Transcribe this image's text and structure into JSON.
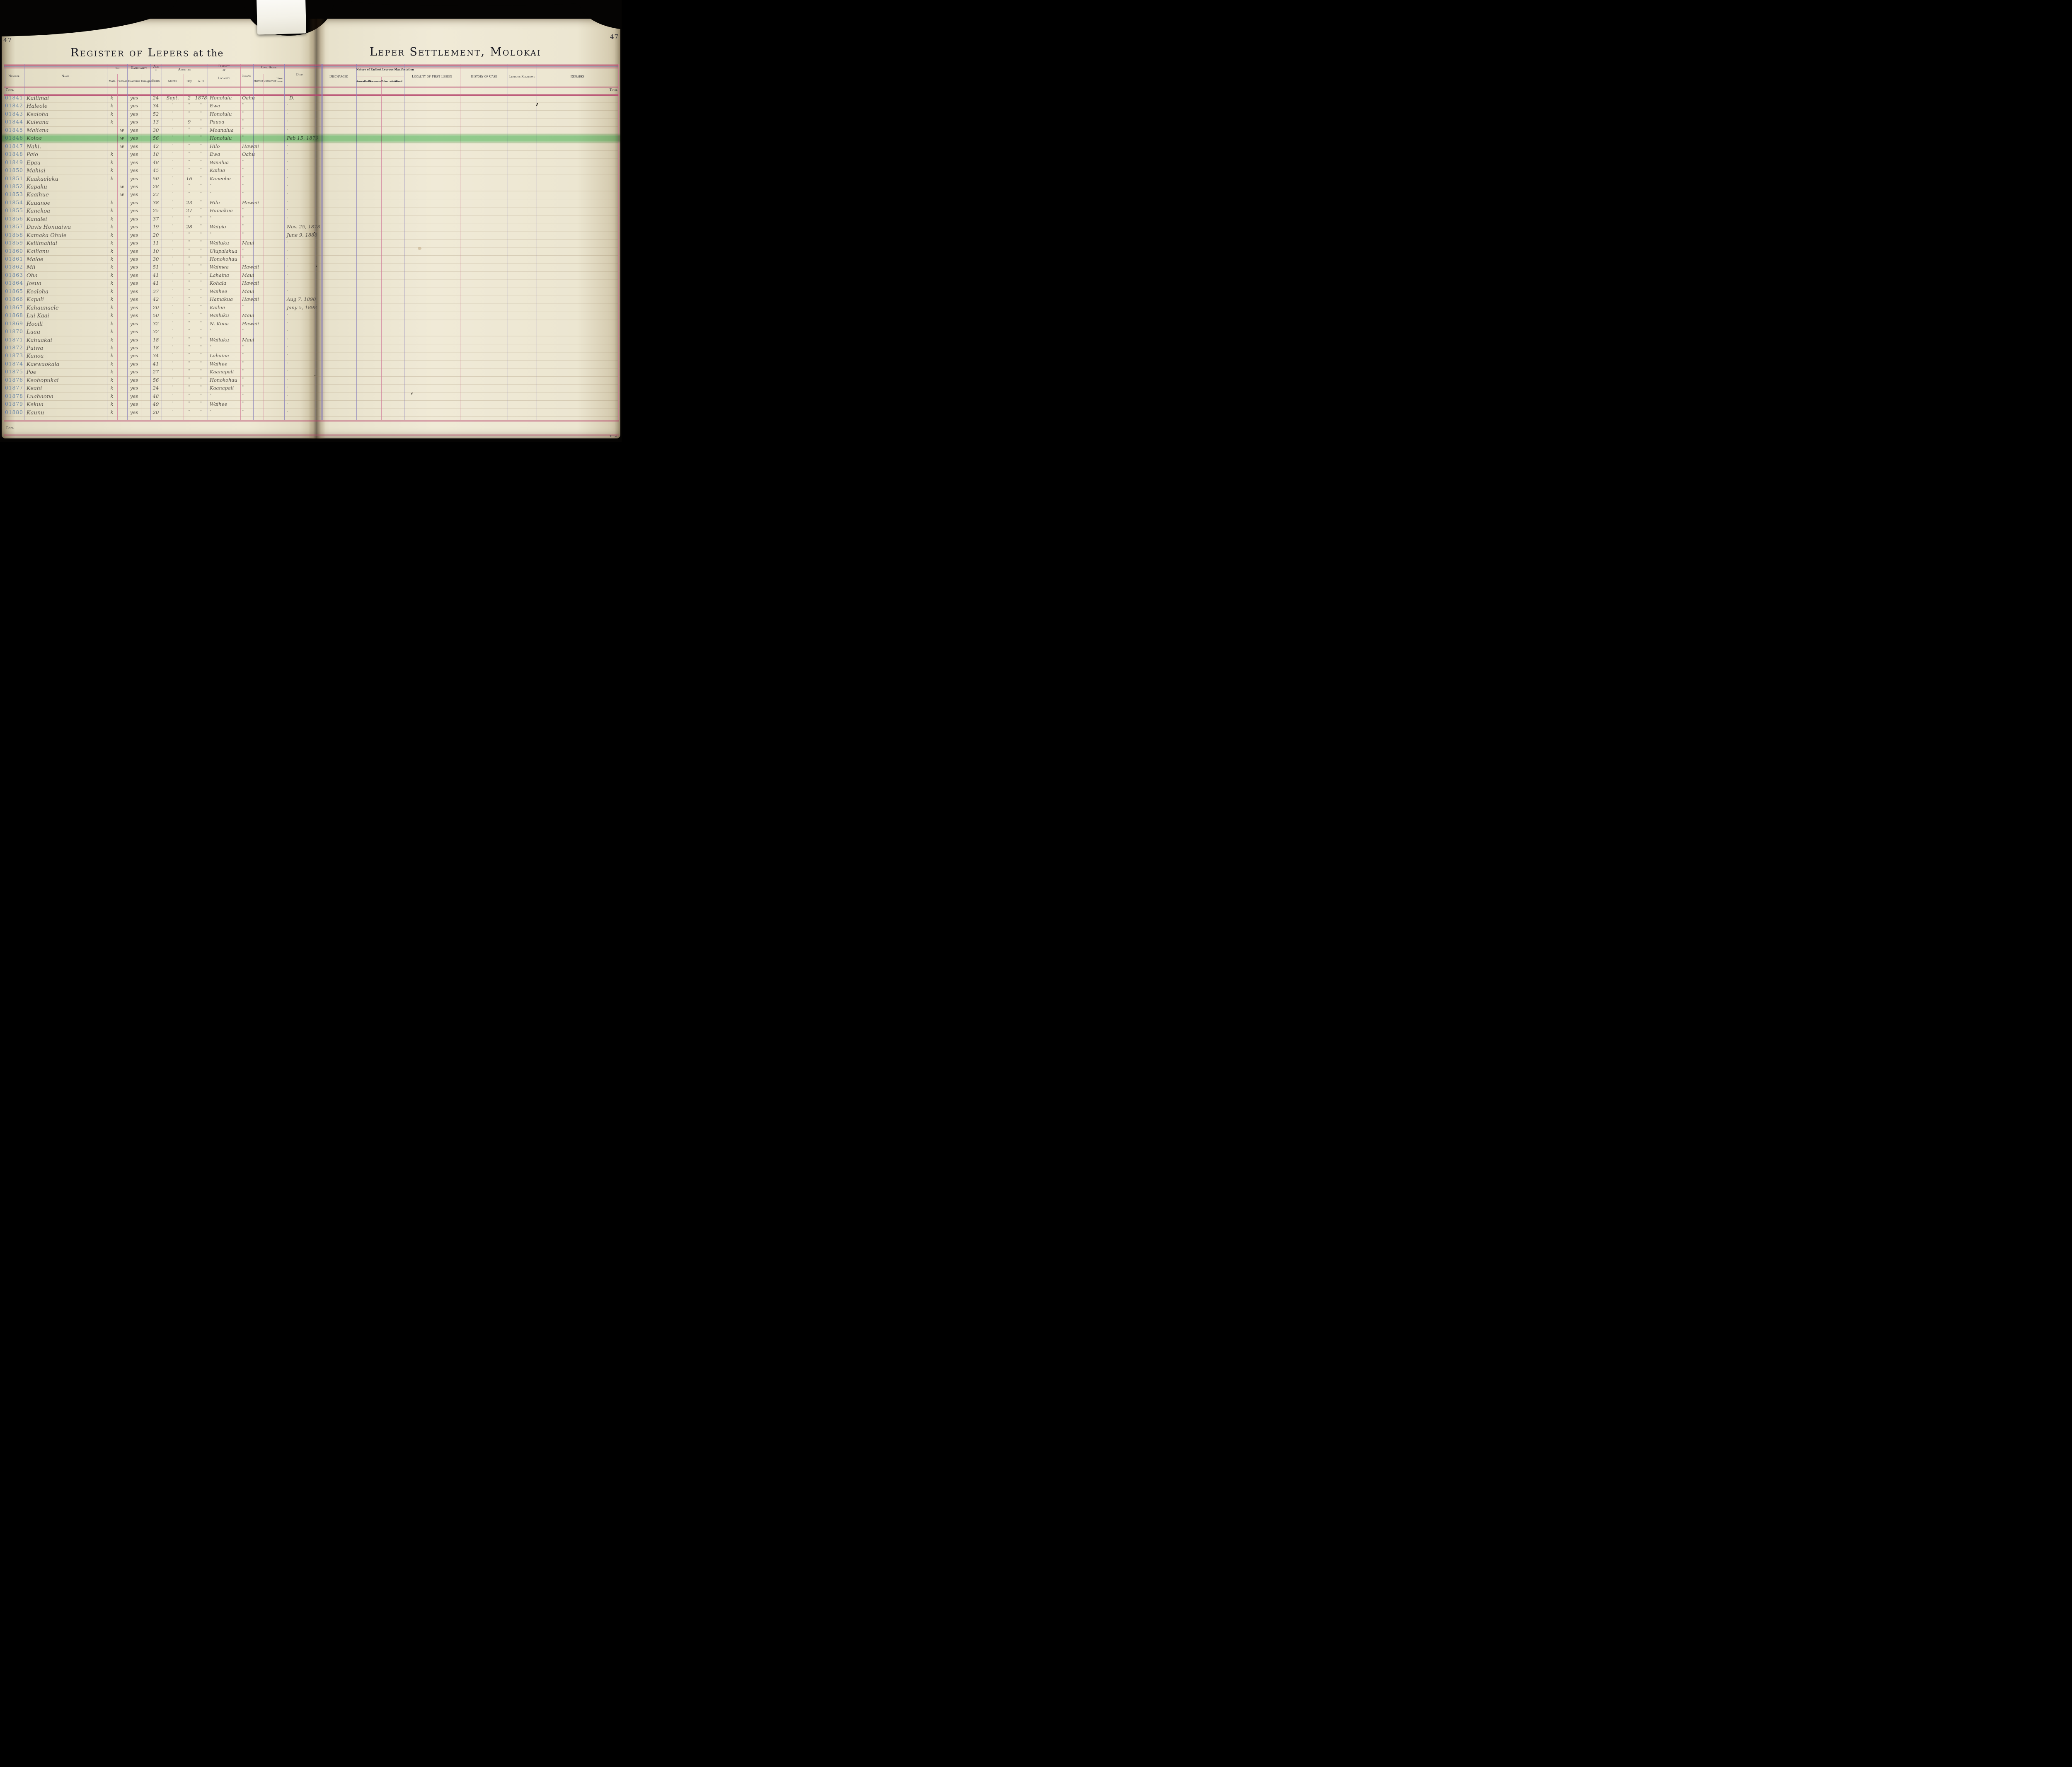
{
  "book": {
    "left_page_number": "47",
    "right_page_number": "47",
    "left_title": "Register of Lepers",
    "left_title_suffix": " at the",
    "right_title": "Leper Settlement, Molokai",
    "total_label": "Total"
  },
  "columns": {
    "number": "Number",
    "name": "Name",
    "sex": "Sex",
    "male": "Male",
    "female": "Female",
    "nationality": "Nationality",
    "hawaiian": "Hawaiian",
    "foreigner": "Foreigner",
    "age1": "Age",
    "age2": "in",
    "age3": "Years",
    "admitted": "Admitted",
    "month": "Month",
    "day": "Day",
    "ad": "A. D.",
    "district1": "District",
    "district2": "or",
    "district3": "Locality",
    "island": "Island",
    "civil": "Civil State",
    "married": "Married",
    "unmarried": "Unmarried",
    "have1": "Have",
    "have2": "Issue",
    "died": "Died",
    "discharged": "Discharged",
    "manifestation": "Nature of Earliest Leprous Manifestation",
    "anaesthetic": "Anaesthetic",
    "macurous": "Macurous",
    "tuberculous": "Tuberculous",
    "mixed": "Mixed",
    "locality_lesion": "Locality of First Lesion",
    "history": "History of Case",
    "relations": "Leprous Relations",
    "remarks": "Remarks"
  },
  "rows": [
    {
      "no": "01841",
      "name": "Kailimai",
      "sex": "k",
      "nat": "yes",
      "age": "24",
      "m": "Sept.",
      "d": "2",
      "y": "1878",
      "dist": "Honolulu",
      "isl": "Oahu",
      "died": "D."
    },
    {
      "no": "01842",
      "name": "Haleole",
      "sex": "k",
      "nat": "yes",
      "age": "34",
      "m": "\"",
      "d": "\"",
      "y": "\"",
      "dist": "Ewa",
      "isl": "\"",
      "died": "·"
    },
    {
      "no": "01843",
      "name": "Kealoha",
      "sex": "k",
      "nat": "yes",
      "age": "52",
      "m": "\"",
      "d": "\"",
      "y": "\"",
      "dist": "Honolulu",
      "isl": "\"",
      "died": "·"
    },
    {
      "no": "01844",
      "name": "Kuleana",
      "sex": "k",
      "nat": "yes",
      "age": "13",
      "m": "\"",
      "d": "9",
      "y": "\"",
      "dist": "Pauoa",
      "isl": "\"",
      "died": "·"
    },
    {
      "no": "01845",
      "name": "Maliana",
      "sex": "w",
      "nat": "yes",
      "age": "30",
      "m": "\"",
      "d": "\"",
      "y": "\"",
      "dist": "Moanalua",
      "isl": "\"",
      "died": "·"
    },
    {
      "no": "01846",
      "name": "Koloa",
      "sex": "w",
      "nat": "yes",
      "age": "56",
      "m": "\"",
      "d": "\"",
      "y": "\"",
      "dist": "Honolulu",
      "isl": "\"",
      "died": "Feb 15, 1879",
      "hl": true
    },
    {
      "no": "01847",
      "name": "Naki.",
      "sex": "w",
      "nat": "yes",
      "age": "42",
      "m": "\"",
      "d": "\"",
      "y": "\"",
      "dist": "Hilo",
      "isl": "Hawaii",
      "died": "·"
    },
    {
      "no": "01848",
      "name": "Paio",
      "sex": "k",
      "nat": "yes",
      "age": "18",
      "m": "\"",
      "d": "\"",
      "y": "\"",
      "dist": "Ewa",
      "isl": "Oahu",
      "died": "·"
    },
    {
      "no": "01849",
      "name": "Epau",
      "sex": "k",
      "nat": "yes",
      "age": "48",
      "m": "\"",
      "d": "\"",
      "y": "\"",
      "dist": "Waialua",
      "isl": "\"",
      "died": "·"
    },
    {
      "no": "01850",
      "name": "Mahiai",
      "sex": "k",
      "nat": "yes",
      "age": "45",
      "m": "\"",
      "d": "\"",
      "y": "\"",
      "dist": "Kailua",
      "isl": "\"",
      "died": "·"
    },
    {
      "no": "01851",
      "name": "Kuakaeleku",
      "sex": "k",
      "nat": "yes",
      "age": "50",
      "m": "\"",
      "d": "16",
      "y": "\"",
      "dist": "Kaneohe",
      "isl": "\"",
      "died": "·"
    },
    {
      "no": "01852",
      "name": "Kapaku",
      "sex": "w",
      "nat": "yes",
      "age": "28",
      "m": "\"",
      "d": "\"",
      "y": "\"",
      "dist": "\"",
      "isl": "\"",
      "died": "·"
    },
    {
      "no": "01853",
      "name": "Kaaihue",
      "sex": "w",
      "nat": "yes",
      "age": "23",
      "m": "\"",
      "d": "\"",
      "y": "\"",
      "dist": "\"",
      "isl": "\"",
      "died": "·"
    },
    {
      "no": "01854",
      "name": "Kauanoe",
      "sex": "k",
      "nat": "yes",
      "age": "38",
      "m": "\"",
      "d": "23",
      "y": "\"",
      "dist": "Hilo",
      "isl": "Hawaii",
      "died": "·"
    },
    {
      "no": "01855",
      "name": "Kanekoa",
      "sex": "k",
      "nat": "yes",
      "age": "25",
      "m": "\"",
      "d": "27",
      "y": "\"",
      "dist": "Hamakua",
      "isl": "\"",
      "died": "·"
    },
    {
      "no": "01856",
      "name": "Kanalei",
      "sex": "k",
      "nat": "yes",
      "age": "37",
      "m": "\"",
      "d": "\"",
      "y": "\"",
      "dist": "\"",
      "isl": "\"",
      "died": "·"
    },
    {
      "no": "01857",
      "name": "Davis Honuaiwa",
      "sex": "k",
      "nat": "yes",
      "age": "19",
      "m": "\"",
      "d": "28",
      "y": "\"",
      "dist": "Waipio",
      "isl": "\"",
      "died": "Nov. 25, 1878"
    },
    {
      "no": "01858",
      "name": "Kamaka Ohule",
      "sex": "k",
      "nat": "yes",
      "age": "20",
      "m": "\"",
      "d": "\"",
      "y": "\"",
      "dist": "\"",
      "isl": "\"",
      "died": "June 9, 1888"
    },
    {
      "no": "01859",
      "name": "Keliimahiai",
      "sex": "k",
      "nat": "yes",
      "age": "11",
      "m": "\"",
      "d": "\"",
      "y": "\"",
      "dist": "Wailuku",
      "isl": "Maui",
      "died": "·"
    },
    {
      "no": "01860",
      "name": "Kailianu",
      "sex": "k",
      "nat": "yes",
      "age": "10",
      "m": "\"",
      "d": "\"",
      "y": "\"",
      "dist": "Ulupalakua",
      "isl": "\"",
      "died": "·"
    },
    {
      "no": "01861",
      "name": "Maloe",
      "sex": "k",
      "nat": "yes",
      "age": "30",
      "m": "\"",
      "d": "\"",
      "y": "\"",
      "dist": "Honokohau",
      "isl": "\"",
      "died": "·"
    },
    {
      "no": "01862",
      "name": "Mii",
      "sex": "k",
      "nat": "yes",
      "age": "51",
      "m": "\"",
      "d": "\"",
      "y": "\"",
      "dist": "Waimea",
      "isl": "Hawaii",
      "died": "·"
    },
    {
      "no": "01863",
      "name": "Oha",
      "sex": "k",
      "nat": "yes",
      "age": "41",
      "m": "\"",
      "d": "\"",
      "y": "\"",
      "dist": "Lahaina",
      "isl": "Maui",
      "died": "·"
    },
    {
      "no": "01864",
      "name": "Josua",
      "sex": "k",
      "nat": "yes",
      "age": "41",
      "m": "\"",
      "d": "\"",
      "y": "\"",
      "dist": "Kohala",
      "isl": "Hawaii",
      "died": "·"
    },
    {
      "no": "01865",
      "name": "Kealoha",
      "sex": "k",
      "nat": "yes",
      "age": "37",
      "m": "\"",
      "d": "\"",
      "y": "\"",
      "dist": "Waihee",
      "isl": "Maui",
      "died": "·"
    },
    {
      "no": "01866",
      "name": "Kapali",
      "sex": "k",
      "nat": "yes",
      "age": "42",
      "m": "\"",
      "d": "\"",
      "y": "\"",
      "dist": "Hamakua",
      "isl": "Hawaii",
      "died": "Aug 7, 1890"
    },
    {
      "no": "01867",
      "name": "Kahaunaele",
      "sex": "k",
      "nat": "yes",
      "age": "20",
      "m": "\"",
      "d": "\"",
      "y": "\"",
      "dist": "Kailua",
      "isl": "\"",
      "died": "Jany 5, 1898"
    },
    {
      "no": "01868",
      "name": "Lui Kaai",
      "sex": "k",
      "nat": "yes",
      "age": "50",
      "m": "\"",
      "d": "\"",
      "y": "\"",
      "dist": "Wailuku",
      "isl": "Maui",
      "died": "·"
    },
    {
      "no": "01869",
      "name": "Hooili",
      "sex": "k",
      "nat": "yes",
      "age": "32",
      "m": "\"",
      "d": "\"",
      "y": "\"",
      "dist": "N. Kona",
      "isl": "Hawaii",
      "died": "·"
    },
    {
      "no": "01870",
      "name": "Luau",
      "sex": "k",
      "nat": "yes",
      "age": "32",
      "m": "\"",
      "d": "\"",
      "y": "\"",
      "dist": "\"",
      "isl": "\"",
      "died": "·"
    },
    {
      "no": "01871",
      "name": "Kahuakai",
      "sex": "k",
      "nat": "yes",
      "age": "18",
      "m": "\"",
      "d": "\"",
      "y": "\"",
      "dist": "Wailuku",
      "isl": "Maui",
      "died": "·"
    },
    {
      "no": "01872",
      "name": "Puiwa",
      "sex": "k",
      "nat": "yes",
      "age": "18",
      "m": "\"",
      "d": "\"",
      "y": "\"",
      "dist": "\"",
      "isl": "\"",
      "died": "·"
    },
    {
      "no": "01873",
      "name": "Kanoa",
      "sex": "k",
      "nat": "yes",
      "age": "34",
      "m": "\"",
      "d": "\"",
      "y": "\"",
      "dist": "Lahaina",
      "isl": "\"",
      "died": "·"
    },
    {
      "no": "01874",
      "name": "Kaewaokala",
      "sex": "k",
      "nat": "yes",
      "age": "41",
      "m": "\"",
      "d": "\"",
      "y": "\"",
      "dist": "Waihee",
      "isl": "\"",
      "died": "·"
    },
    {
      "no": "01875",
      "name": "Poe",
      "sex": "k",
      "nat": "yes",
      "age": "27",
      "m": "\"",
      "d": "\"",
      "y": "\"",
      "dist": "Kaanapali",
      "isl": "\"",
      "died": "·"
    },
    {
      "no": "01876",
      "name": "Keohopukai",
      "sex": "k",
      "nat": "yes",
      "age": "56",
      "m": "\"",
      "d": "\"",
      "y": "\"",
      "dist": "Honokohau",
      "isl": "\"",
      "died": "·"
    },
    {
      "no": "01877",
      "name": "Keahi",
      "sex": "k",
      "nat": "yes",
      "age": "24",
      "m": "\"",
      "d": "\"",
      "y": "\"",
      "dist": "Kaanapali",
      "isl": "\"",
      "died": "·"
    },
    {
      "no": "01878",
      "name": "Luahaona",
      "sex": "k",
      "nat": "yes",
      "age": "48",
      "m": "\"",
      "d": "\"",
      "y": "\"",
      "dist": "\"",
      "isl": "\"",
      "died": "·"
    },
    {
      "no": "01879",
      "name": "Kekua",
      "sex": "k",
      "nat": "yes",
      "age": "49",
      "m": "\"",
      "d": "\"",
      "y": "\"",
      "dist": "Waihee",
      "isl": "\"",
      "died": "·"
    },
    {
      "no": "01880",
      "name": "Kaunu",
      "sex": "k",
      "nat": "yes",
      "age": "20",
      "m": "\"",
      "d": "\"",
      "y": "\"",
      "dist": "\"",
      "isl": "\"",
      "died": "·"
    }
  ]
}
